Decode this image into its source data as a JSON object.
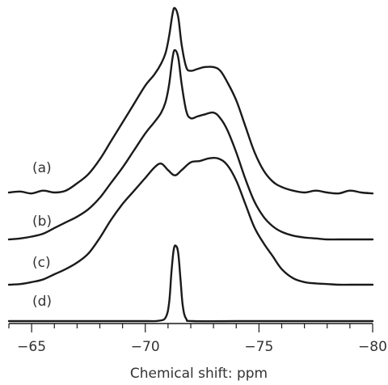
{
  "chart_data": {
    "type": "line",
    "title": "",
    "xlabel": "Chemical shift: ppm",
    "ylabel": "",
    "xlim": [
      -64,
      -80
    ],
    "x_reversed": true,
    "xticks": [
      -65,
      -70,
      -75,
      -80
    ],
    "xtick_labels": [
      "−65",
      "−70",
      "−75",
      "−80"
    ],
    "minor_tick_step": 1,
    "grid": false,
    "legend": "none",
    "series": [
      {
        "name": "(a)",
        "x": [
          -64.0,
          -64.5,
          -65.0,
          -65.5,
          -66.0,
          -66.5,
          -67.0,
          -67.5,
          -68.0,
          -68.5,
          -69.0,
          -69.5,
          -70.0,
          -70.4,
          -70.7,
          -70.9,
          -71.05,
          -71.2,
          -71.3,
          -71.45,
          -71.6,
          -71.8,
          -72.0,
          -72.3,
          -72.6,
          -73.0,
          -73.3,
          -73.6,
          -74.0,
          -74.4,
          -74.8,
          -75.2,
          -75.6,
          -76.0,
          -76.5,
          -77.0,
          -77.5,
          -78.0,
          -78.5,
          -79.0,
          -79.5,
          -80.0
        ],
        "y": [
          0.0,
          0.005,
          -0.005,
          0.01,
          0.0,
          0.01,
          0.05,
          0.1,
          0.18,
          0.28,
          0.38,
          0.48,
          0.58,
          0.64,
          0.7,
          0.76,
          0.85,
          0.97,
          1.0,
          0.95,
          0.8,
          0.68,
          0.66,
          0.67,
          0.68,
          0.68,
          0.66,
          0.6,
          0.5,
          0.36,
          0.22,
          0.12,
          0.06,
          0.03,
          0.01,
          0.0,
          0.01,
          0.0,
          -0.005,
          0.01,
          0.0,
          -0.005
        ]
      },
      {
        "name": "(b)",
        "x": [
          -64.0,
          -64.5,
          -65.0,
          -65.5,
          -66.0,
          -66.5,
          -67.0,
          -67.5,
          -68.0,
          -68.5,
          -69.0,
          -69.5,
          -70.0,
          -70.4,
          -70.7,
          -70.9,
          -71.05,
          -71.2,
          -71.3,
          -71.45,
          -71.6,
          -71.8,
          -72.0,
          -72.3,
          -72.6,
          -73.0,
          -73.3,
          -73.6,
          -74.0,
          -74.4,
          -74.8,
          -75.2,
          -75.6,
          -76.0,
          -76.5,
          -77.0,
          -77.5,
          -78.0,
          -78.5,
          -79.0,
          -79.5,
          -80.0
        ],
        "y": [
          0.0,
          0.005,
          0.015,
          0.03,
          0.06,
          0.09,
          0.12,
          0.16,
          0.22,
          0.3,
          0.38,
          0.47,
          0.56,
          0.62,
          0.67,
          0.73,
          0.82,
          0.96,
          1.0,
          0.96,
          0.82,
          0.68,
          0.64,
          0.65,
          0.66,
          0.67,
          0.64,
          0.58,
          0.46,
          0.32,
          0.2,
          0.12,
          0.07,
          0.04,
          0.02,
          0.01,
          0.005,
          0.0,
          0.0,
          0.0,
          0.0,
          0.0
        ]
      },
      {
        "name": "(c)",
        "x": [
          -64.0,
          -64.5,
          -65.0,
          -65.5,
          -66.0,
          -66.5,
          -67.0,
          -67.5,
          -68.0,
          -68.5,
          -69.0,
          -69.5,
          -70.0,
          -70.4,
          -70.7,
          -71.0,
          -71.3,
          -71.6,
          -72.0,
          -72.4,
          -72.8,
          -73.2,
          -73.6,
          -74.0,
          -74.4,
          -74.8,
          -75.2,
          -75.6,
          -76.0,
          -76.5,
          -77.0,
          -77.5,
          -78.0,
          -78.5,
          -79.0,
          -79.5,
          -80.0
        ],
        "y": [
          0.0,
          0.005,
          0.02,
          0.04,
          0.08,
          0.12,
          0.17,
          0.24,
          0.36,
          0.5,
          0.62,
          0.72,
          0.82,
          0.9,
          0.93,
          0.88,
          0.84,
          0.88,
          0.94,
          0.95,
          0.97,
          0.97,
          0.92,
          0.8,
          0.62,
          0.44,
          0.32,
          0.22,
          0.12,
          0.05,
          0.02,
          0.01,
          0.005,
          0.0,
          0.0,
          0.0,
          0.0
        ]
      },
      {
        "name": "(d)",
        "x": [
          -64.0,
          -66.0,
          -68.0,
          -70.0,
          -70.6,
          -70.9,
          -71.05,
          -71.15,
          -71.25,
          -71.35,
          -71.45,
          -71.55,
          -71.65,
          -71.8,
          -72.1,
          -74.0,
          -76.0,
          -78.0,
          -80.0
        ],
        "y": [
          0.0,
          0.0,
          0.0,
          0.0,
          0.005,
          0.05,
          0.25,
          0.65,
          0.95,
          1.0,
          0.9,
          0.55,
          0.2,
          0.03,
          0.0,
          0.0,
          0.0,
          0.0,
          0.0
        ]
      }
    ]
  }
}
